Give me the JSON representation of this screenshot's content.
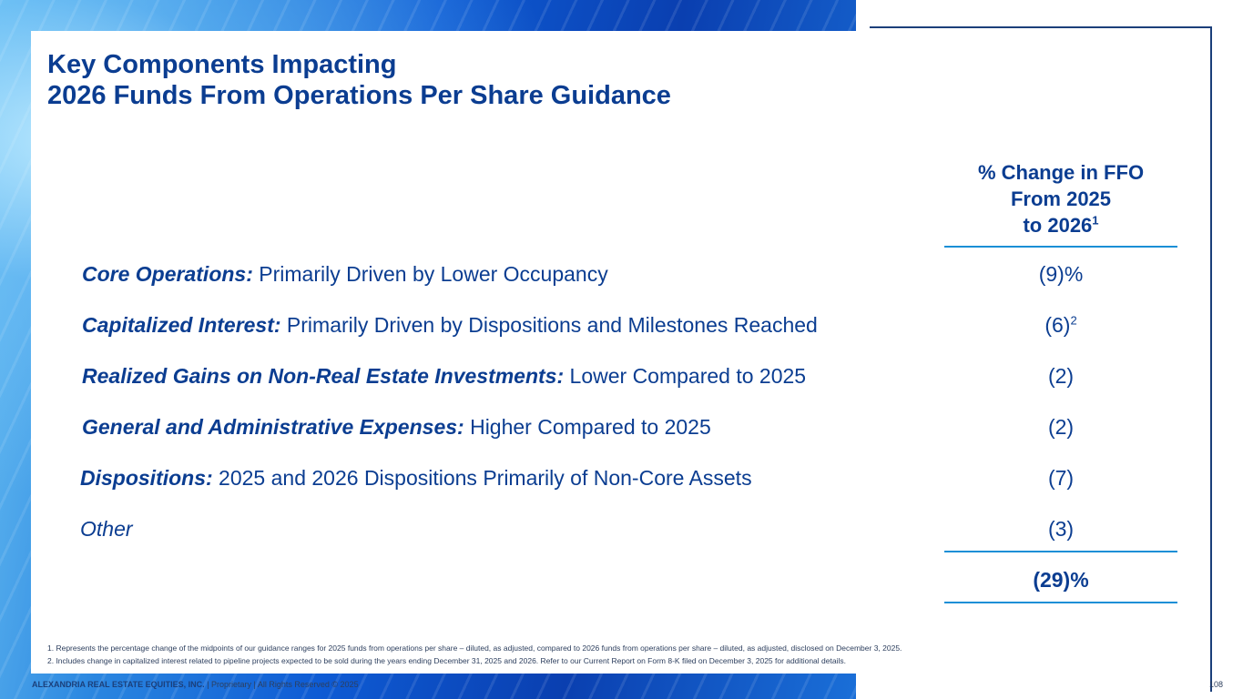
{
  "title": {
    "line1": "Key Components Impacting",
    "line2": "2026 Funds From Operations Per Share Guidance"
  },
  "column_header": {
    "line1": "% Change in FFO",
    "line2": "From 2025",
    "line3": "to 2026",
    "footnote_ref": "1"
  },
  "rows": [
    {
      "bold": "Core Operations:",
      "text": " Primarily Driven by Lower Occupancy",
      "value": "(9)%",
      "sup": ""
    },
    {
      "bold": "Capitalized Interest:",
      "text": " Primarily Driven by Dispositions and Milestones Reached",
      "value": "(6)",
      "sup": "2"
    },
    {
      "bold": "Realized Gains on Non-Real Estate Investments:",
      "text": " Lower Compared to 2025",
      "value": "(2)",
      "sup": ""
    },
    {
      "bold": "General and Administrative Expenses:",
      "text": " Higher Compared to 2025",
      "value": "(2)",
      "sup": ""
    },
    {
      "bold": "Dispositions:",
      "text": " 2025 and 2026 Dispositions Primarily of Non-Core Assets",
      "value": "(7)",
      "sup": ""
    },
    {
      "bold": "",
      "text": "Other",
      "value": "(3)",
      "sup": ""
    }
  ],
  "total": {
    "value": "(29)%"
  },
  "footnotes": [
    "1.   Represents the percentage change of the midpoints of our guidance ranges for 2025 funds from operations per share – diluted, as adjusted, compared to 2026 funds from operations per share – diluted, as adjusted, disclosed on December 3, 2025.",
    "2.   Includes change in capitalized interest related to pipeline projects expected to be sold during the years ending December 31, 2025 and 2026. Refer to our Current Report on Form 8-K filed on December 3, 2025 for additional details."
  ],
  "footer": {
    "company": "ALEXANDRIA REAL ESTATE EQUITIES, INC.",
    "rights": " | Proprietary | All Rights Reserved © 2025",
    "page_number": "108"
  }
}
